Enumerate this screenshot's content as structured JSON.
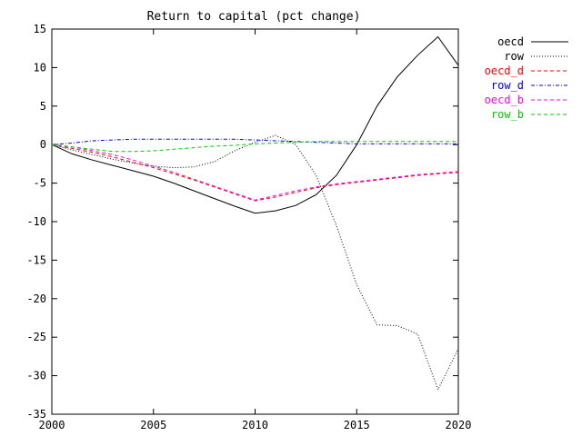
{
  "chart_data": {
    "type": "line",
    "title": "Return to capital (pct change)",
    "xlabel": "",
    "ylabel": "",
    "xlim": [
      2000,
      2020
    ],
    "ylim": [
      -35,
      15
    ],
    "xticks": [
      2000,
      2005,
      2010,
      2015,
      2020
    ],
    "yticks": [
      15,
      10,
      5,
      0,
      -5,
      -10,
      -15,
      -20,
      -25,
      -30,
      -35
    ],
    "grid": false,
    "legend_position": "top-right, outside plot",
    "x": [
      2000,
      2001,
      2002,
      2003,
      2004,
      2005,
      2006,
      2007,
      2008,
      2009,
      2010,
      2011,
      2012,
      2013,
      2014,
      2015,
      2016,
      2017,
      2018,
      2019,
      2020
    ],
    "series": [
      {
        "name": "oecd",
        "color": "#000000",
        "dash": "solid",
        "values": [
          0,
          -1.2,
          -2,
          -2.7,
          -3.4,
          -4.1,
          -5.0,
          -6.0,
          -7.0,
          -8.0,
          -8.9,
          -8.6,
          -7.9,
          -6.5,
          -4.0,
          0.0,
          5.0,
          8.8,
          11.6,
          14.0,
          10.3
        ]
      },
      {
        "name": "row",
        "color": "#000000",
        "dash": "dotted",
        "values": [
          0,
          -0.7,
          -1.3,
          -1.9,
          -2.4,
          -2.8,
          -3.0,
          -2.9,
          -2.2,
          -0.8,
          0.3,
          1.2,
          0.0,
          -4.0,
          -10.5,
          -18.2,
          -23.4,
          -23.5,
          -24.6,
          -31.8,
          -26.5
        ]
      },
      {
        "name": "oecd_d",
        "color": "#ff0000",
        "dash": "dashed",
        "values": [
          0,
          -0.5,
          -1.0,
          -1.6,
          -2.3,
          -3.0,
          -3.8,
          -4.6,
          -5.5,
          -6.4,
          -7.3,
          -6.8,
          -6.2,
          -5.6,
          -5.2,
          -4.9,
          -4.6,
          -4.3,
          -4.0,
          -3.8,
          -3.6
        ]
      },
      {
        "name": "row_d",
        "color": "#0000ff",
        "dash": "dash-dot",
        "values": [
          0,
          0.2,
          0.5,
          0.6,
          0.7,
          0.7,
          0.7,
          0.7,
          0.7,
          0.7,
          0.6,
          0.5,
          0.4,
          0.3,
          0.2,
          0.1,
          0.1,
          0.1,
          0.1,
          0.1,
          0.1
        ]
      },
      {
        "name": "oecd_b",
        "color": "#ff00ff",
        "dash": "dashed",
        "values": [
          0,
          -0.3,
          -0.8,
          -1.3,
          -2.0,
          -2.8,
          -3.6,
          -4.5,
          -5.4,
          -6.3,
          -7.2,
          -6.6,
          -6.0,
          -5.5,
          -5.1,
          -4.8,
          -4.5,
          -4.2,
          -3.9,
          -3.7,
          -3.5
        ]
      },
      {
        "name": "row_b",
        "color": "#00cc00",
        "dash": "dashed",
        "values": [
          0,
          -0.3,
          -0.6,
          -0.9,
          -0.9,
          -0.8,
          -0.6,
          -0.4,
          -0.2,
          -0.1,
          0.1,
          0.2,
          0.3,
          0.4,
          0.4,
          0.4,
          0.4,
          0.4,
          0.4,
          0.4,
          0.4
        ]
      }
    ]
  }
}
